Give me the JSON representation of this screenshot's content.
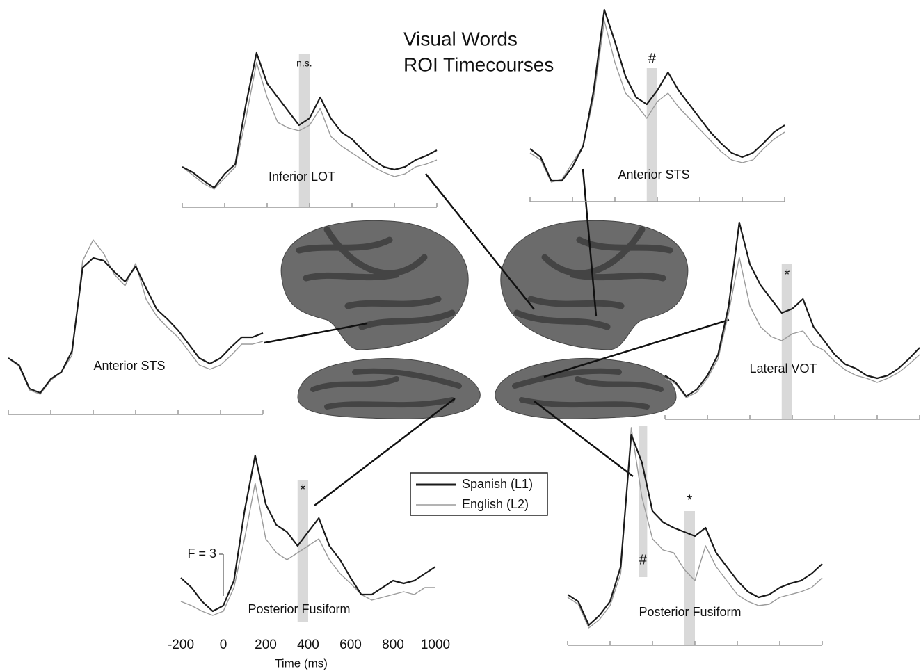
{
  "title": [
    "Visual Words",
    "ROI Timecourses"
  ],
  "chart_data": [
    {
      "type": "line",
      "title": "Inferior LOT",
      "x": [
        -200,
        -150,
        -100,
        -50,
        0,
        50,
        100,
        150,
        200,
        250,
        300,
        350,
        400,
        450,
        500,
        550,
        600,
        650,
        700,
        750,
        800,
        850,
        900,
        950,
        1000
      ],
      "xlim": [
        -200,
        1000
      ],
      "xticks": [
        -200,
        0,
        200,
        400,
        600,
        800,
        1000
      ],
      "ylim": [
        0,
        11
      ],
      "series": [
        {
          "name": "Spanish (L1)",
          "color": "#1a1a1a",
          "values": [
            2.0,
            1.6,
            1.0,
            0.5,
            1.5,
            2.2,
            6.5,
            10.2,
            8.0,
            7.0,
            6.0,
            5.0,
            5.5,
            7.0,
            5.5,
            4.5,
            4.0,
            3.2,
            2.5,
            2.0,
            1.8,
            2.0,
            2.5,
            2.8,
            3.2
          ]
        },
        {
          "name": "English (L2)",
          "color": "#9a9a9a",
          "values": [
            2.0,
            1.4,
            0.8,
            0.4,
            1.2,
            2.0,
            5.5,
            9.5,
            7.0,
            5.2,
            4.8,
            4.6,
            5.0,
            6.2,
            4.2,
            3.5,
            3.0,
            2.5,
            2.0,
            1.6,
            1.3,
            1.5,
            2.0,
            2.2,
            2.5
          ]
        }
      ],
      "highlights": [
        {
          "xlim": [
            350,
            400
          ],
          "label": "n.s.",
          "color": "#d9d9d9"
        }
      ]
    },
    {
      "type": "line",
      "title": "Anterior STS",
      "x": [
        -200,
        -150,
        -100,
        -50,
        0,
        50,
        100,
        150,
        200,
        250,
        300,
        350,
        400,
        450,
        500,
        550,
        600,
        650,
        700,
        750,
        800,
        850,
        900,
        950,
        1000
      ],
      "xlim": [
        -200,
        1000
      ],
      "xticks": [
        -200,
        0,
        200,
        400,
        600,
        800,
        1000
      ],
      "ylim": [
        0,
        13
      ],
      "series": [
        {
          "name": "Spanish (L1)",
          "color": "#1a1a1a",
          "values": [
            2.8,
            2.2,
            0.5,
            0.5,
            1.5,
            3.0,
            7.0,
            12.8,
            10.5,
            8.0,
            6.5,
            6.0,
            7.0,
            8.3,
            7.0,
            6.0,
            5.0,
            4.0,
            3.2,
            2.5,
            2.2,
            2.5,
            3.2,
            4.0,
            4.5
          ]
        },
        {
          "name": "English (L2)",
          "color": "#9a9a9a",
          "values": [
            2.5,
            2.0,
            0.4,
            0.6,
            1.8,
            3.0,
            6.5,
            12.0,
            9.0,
            6.8,
            6.0,
            5.0,
            6.2,
            6.8,
            5.8,
            5.0,
            4.2,
            3.4,
            2.6,
            2.0,
            1.8,
            2.0,
            2.8,
            3.5,
            4.0
          ]
        }
      ],
      "highlights": [
        {
          "xlim": [
            350,
            400
          ],
          "label": "#",
          "color": "#d9d9d9"
        }
      ]
    },
    {
      "type": "line",
      "title": "Anterior STS",
      "x": [
        -200,
        -150,
        -100,
        -50,
        0,
        50,
        100,
        150,
        200,
        250,
        300,
        350,
        400,
        450,
        500,
        550,
        600,
        650,
        700,
        750,
        800,
        850,
        900,
        950,
        1000
      ],
      "xlim": [
        -200,
        1000
      ],
      "xticks": [
        -200,
        0,
        200,
        400,
        600,
        800,
        1000
      ],
      "ylim": [
        0,
        12
      ],
      "series": [
        {
          "name": "Spanish (L1)",
          "color": "#1a1a1a",
          "values": [
            3.0,
            2.5,
            0.8,
            0.5,
            1.5,
            2.0,
            3.5,
            9.5,
            10.2,
            10.0,
            9.2,
            8.5,
            9.6,
            8.0,
            6.5,
            5.8,
            5.0,
            4.0,
            3.0,
            2.6,
            3.0,
            3.8,
            4.5,
            4.5,
            4.8
          ]
        },
        {
          "name": "English (L2)",
          "color": "#9a9a9a",
          "values": [
            3.0,
            2.4,
            0.7,
            0.4,
            1.4,
            2.0,
            3.2,
            10.0,
            11.5,
            10.5,
            9.0,
            8.2,
            9.8,
            7.2,
            6.0,
            5.2,
            4.5,
            3.5,
            2.5,
            2.2,
            2.5,
            3.2,
            4.0,
            4.0,
            4.2
          ]
        }
      ],
      "highlights": []
    },
    {
      "type": "line",
      "title": "Lateral VOT",
      "x": [
        -200,
        -150,
        -100,
        -50,
        0,
        50,
        100,
        150,
        200,
        250,
        300,
        350,
        400,
        450,
        500,
        550,
        600,
        650,
        700,
        750,
        800,
        850,
        900,
        950,
        1000
      ],
      "xlim": [
        -200,
        1000
      ],
      "xticks": [
        -200,
        0,
        200,
        400,
        600,
        800,
        1000
      ],
      "ylim": [
        0,
        14
      ],
      "series": [
        {
          "name": "Spanish (L1)",
          "color": "#1a1a1a",
          "values": [
            2.0,
            1.5,
            0.5,
            1.0,
            2.0,
            3.5,
            7.0,
            13.0,
            10.0,
            8.5,
            7.5,
            6.5,
            6.8,
            7.5,
            5.5,
            4.5,
            3.5,
            2.8,
            2.5,
            2.0,
            1.8,
            2.0,
            2.5,
            3.2,
            4.0
          ]
        },
        {
          "name": "English (L2)",
          "color": "#9a9a9a",
          "values": [
            1.8,
            1.4,
            0.4,
            0.8,
            1.8,
            3.2,
            6.5,
            10.5,
            7.0,
            5.5,
            4.8,
            4.5,
            5.0,
            5.2,
            4.2,
            3.8,
            3.0,
            2.4,
            2.0,
            1.8,
            1.5,
            1.8,
            2.2,
            2.8,
            3.5
          ]
        }
      ],
      "highlights": [
        {
          "xlim": [
            350,
            400
          ],
          "label": "*",
          "color": "#d9d9d9"
        }
      ]
    },
    {
      "type": "line",
      "title": "Posterior Fusiform",
      "x": [
        -200,
        -150,
        -100,
        -50,
        0,
        50,
        100,
        150,
        200,
        250,
        300,
        350,
        400,
        450,
        500,
        550,
        600,
        650,
        700,
        750,
        800,
        850,
        900,
        950,
        1000
      ],
      "xlim": [
        -200,
        1000
      ],
      "xticks": [
        -200,
        0,
        200,
        400,
        600,
        800,
        1000
      ],
      "ylim": [
        0,
        13
      ],
      "xlabel": "Time (ms)",
      "tick_labels": true,
      "axis_line": false,
      "scale_bar": {
        "value": 3,
        "label": "F = 3"
      },
      "series": [
        {
          "name": "Spanish (L1)",
          "color": "#1a1a1a",
          "values": [
            3.2,
            2.5,
            1.5,
            0.8,
            1.2,
            3.0,
            8.0,
            12.0,
            8.5,
            7.0,
            6.5,
            5.5,
            6.5,
            7.5,
            5.5,
            4.5,
            3.2,
            2.0,
            2.0,
            2.5,
            3.0,
            2.8,
            3.0,
            3.5,
            4.0
          ]
        },
        {
          "name": "English (L2)",
          "color": "#9a9a9a",
          "values": [
            1.5,
            1.2,
            0.8,
            0.5,
            0.8,
            2.5,
            6.0,
            10.0,
            6.0,
            5.0,
            4.5,
            5.0,
            5.5,
            6.0,
            4.5,
            3.5,
            2.8,
            2.0,
            1.6,
            1.8,
            2.0,
            2.2,
            2.0,
            2.5,
            2.5
          ]
        }
      ],
      "highlights": [
        {
          "xlim": [
            350,
            400
          ],
          "label": "*",
          "color": "#d9d9d9"
        }
      ]
    },
    {
      "type": "line",
      "title": "Posterior Fusiform",
      "x": [
        -200,
        -150,
        -100,
        -50,
        0,
        50,
        100,
        150,
        200,
        250,
        300,
        350,
        400,
        450,
        500,
        550,
        600,
        650,
        700,
        750,
        800,
        850,
        900,
        950,
        1000
      ],
      "xlim": [
        -200,
        1000
      ],
      "xticks": [
        -200,
        0,
        200,
        400,
        600,
        800,
        1000
      ],
      "ylim": [
        0,
        16
      ],
      "series": [
        {
          "name": "Spanish (L1)",
          "color": "#1a1a1a",
          "values": [
            3.0,
            2.5,
            0.8,
            1.5,
            2.5,
            5.0,
            14.5,
            12.5,
            9.0,
            8.2,
            7.8,
            7.5,
            7.2,
            7.8,
            6.0,
            5.0,
            4.0,
            3.2,
            2.8,
            3.0,
            3.5,
            3.8,
            4.0,
            4.5,
            5.2
          ]
        },
        {
          "name": "English (L2)",
          "color": "#9a9a9a",
          "values": [
            2.8,
            2.3,
            0.6,
            1.2,
            2.2,
            4.5,
            15.0,
            10.0,
            7.0,
            6.2,
            6.0,
            4.8,
            4.0,
            6.5,
            5.0,
            4.0,
            3.0,
            2.5,
            2.2,
            2.3,
            2.8,
            3.0,
            3.2,
            3.5,
            4.2
          ]
        }
      ],
      "highlights": [
        {
          "xlim": [
            135,
            175
          ],
          "label": "#",
          "color": "#d9d9d9"
        },
        {
          "xlim": [
            350,
            400
          ],
          "label": "*",
          "color": "#d9d9d9"
        }
      ]
    }
  ]
}
